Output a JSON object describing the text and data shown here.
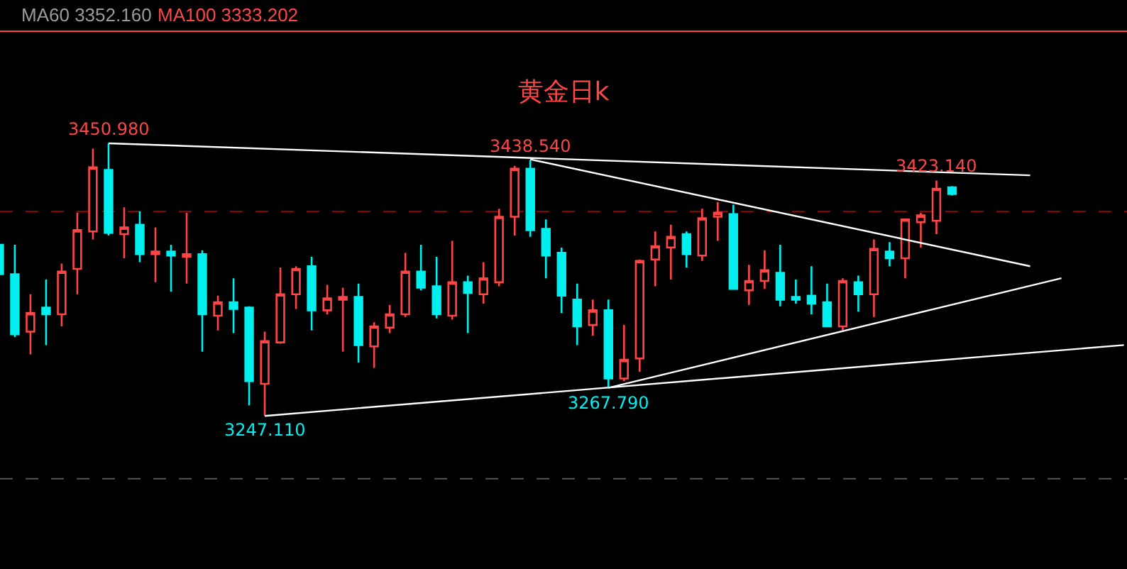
{
  "chart_data": {
    "type": "candlestick",
    "title": "黄金日k",
    "categories": [
      null,
      null,
      null,
      null,
      null,
      null,
      null,
      null,
      null,
      null,
      null,
      null,
      null,
      null,
      null,
      null,
      null,
      null,
      null,
      null,
      null,
      null,
      null,
      null,
      null,
      null,
      null,
      null,
      null,
      null,
      null,
      null,
      null,
      null,
      null,
      null,
      null,
      null,
      null,
      null,
      null,
      null,
      null,
      null,
      null,
      null,
      null,
      null,
      null,
      null,
      null,
      null,
      null,
      null,
      null,
      null,
      null,
      null,
      null,
      null,
      null,
      null,
      null,
      null,
      null,
      null,
      null,
      null,
      null,
      null,
      null,
      null,
      null
    ],
    "series": [
      {
        "type": "line",
        "color": "#ffffff",
        "values": [
          null,
          null,
          null,
          null,
          null,
          null,
          null,
          3451,
          null,
          null,
          null,
          null,
          null,
          null,
          null,
          null,
          null,
          null,
          null,
          null,
          null,
          null,
          null,
          null,
          null,
          null,
          null,
          null,
          null,
          null,
          null,
          null,
          null,
          null,
          null,
          null,
          null,
          null,
          null,
          null,
          null,
          null,
          null,
          null,
          null,
          null,
          null,
          null,
          null,
          null,
          null,
          null,
          null,
          null,
          null,
          null,
          null,
          null,
          null,
          null,
          null,
          null,
          null,
          null,
          null,
          null,
          3427,
          null,
          null,
          null,
          null,
          null,
          null
        ]
      },
      {
        "type": "line",
        "color": "#ffffff",
        "values": [
          null,
          null,
          null,
          null,
          null,
          null,
          null,
          null,
          null,
          null,
          null,
          null,
          null,
          null,
          null,
          null,
          null,
          null,
          null,
          null,
          null,
          null,
          null,
          null,
          null,
          null,
          null,
          null,
          null,
          null,
          null,
          null,
          null,
          null,
          3439,
          null,
          null,
          null,
          null,
          null,
          null,
          null,
          null,
          null,
          null,
          null,
          null,
          null,
          null,
          null,
          null,
          null,
          null,
          null,
          null,
          null,
          null,
          null,
          null,
          null,
          null,
          null,
          null,
          null,
          null,
          null,
          3359,
          null,
          null,
          null,
          null,
          null,
          null
        ]
      },
      {
        "type": "line",
        "color": "#ffffff",
        "values": [
          null,
          null,
          null,
          null,
          null,
          null,
          null,
          null,
          null,
          null,
          null,
          null,
          null,
          null,
          null,
          null,
          null,
          null,
          null,
          null,
          null,
          null,
          null,
          null,
          null,
          null,
          null,
          null,
          null,
          null,
          null,
          null,
          null,
          null,
          null,
          null,
          null,
          null,
          null,
          3268,
          null,
          null,
          null,
          null,
          null,
          null,
          null,
          null,
          null,
          null,
          null,
          null,
          null,
          null,
          null,
          null,
          null,
          null,
          null,
          null,
          null,
          null,
          null,
          null,
          null,
          null,
          null,
          null,
          3350,
          null,
          null,
          null,
          null
        ]
      },
      {
        "type": "line",
        "color": "#ffffff",
        "values": [
          null,
          null,
          null,
          null,
          null,
          null,
          null,
          null,
          null,
          null,
          null,
          null,
          null,
          null,
          null,
          null,
          null,
          3247,
          null,
          null,
          null,
          null,
          null,
          null,
          null,
          null,
          null,
          null,
          null,
          null,
          null,
          null,
          null,
          null,
          null,
          null,
          null,
          null,
          null,
          null,
          null,
          null,
          null,
          null,
          null,
          null,
          null,
          null,
          null,
          null,
          null,
          null,
          null,
          null,
          null,
          null,
          null,
          null,
          null,
          null,
          null,
          null,
          null,
          null,
          null,
          null,
          null,
          null,
          null,
          null,
          null,
          null,
          3300
        ]
      },
      {
        "ohlc": [
          [
            3375,
            3375,
            3353,
            3353
          ],
          [
            3353,
            3375,
            3306,
            3308
          ],
          [
            3310,
            3338,
            3293,
            3324
          ],
          [
            3328,
            3349,
            3300,
            3323
          ],
          [
            3323,
            3361,
            3314,
            3355
          ],
          [
            3357,
            3399,
            3338,
            3386
          ],
          [
            3385,
            3447,
            3379,
            3433
          ],
          [
            3431,
            3450.98,
            3382,
            3384
          ],
          [
            3383,
            3403,
            3365,
            3388
          ],
          [
            3390,
            3400,
            3362,
            3368
          ],
          [
            3368,
            3388,
            3347,
            3370
          ],
          [
            3370,
            3375,
            3340,
            3367
          ],
          [
            3366,
            3399,
            3346,
            3368
          ],
          [
            3368,
            3371,
            3295,
            3323
          ],
          [
            3322,
            3337,
            3311,
            3332
          ],
          [
            3332,
            3350,
            3309,
            3327
          ],
          [
            3328,
            3329,
            3255,
            3273
          ],
          [
            3271,
            3310,
            3247.11,
            3303
          ],
          [
            3302,
            3358,
            3301,
            3338
          ],
          [
            3338,
            3359,
            3327,
            3357
          ],
          [
            3359,
            3366,
            3311,
            3326
          ],
          [
            3326,
            3345,
            3323,
            3335
          ],
          [
            3334,
            3343,
            3295,
            3336
          ],
          [
            3336,
            3346,
            3287,
            3300
          ],
          [
            3299,
            3317,
            3283,
            3314
          ],
          [
            3313,
            3330,
            3309,
            3323
          ],
          [
            3323,
            3369,
            3321,
            3355
          ],
          [
            3355,
            3375,
            3341,
            3343
          ],
          [
            3344,
            3366,
            3320,
            3323
          ],
          [
            3322,
            3378,
            3319,
            3347
          ],
          [
            3347,
            3352,
            3309,
            3339
          ],
          [
            3338,
            3362,
            3331,
            3350
          ],
          [
            3347,
            3402,
            3344,
            3396
          ],
          [
            3396,
            3434,
            3382,
            3432
          ],
          [
            3432,
            3438.54,
            3381,
            3386
          ],
          [
            3387,
            3394,
            3350,
            3367
          ],
          [
            3369,
            3373,
            3324,
            3337
          ],
          [
            3334,
            3346,
            3300,
            3314
          ],
          [
            3315,
            3334,
            3307,
            3326
          ],
          [
            3326,
            3334,
            3267.79,
            3275
          ],
          [
            3275,
            3315,
            3273,
            3289
          ],
          [
            3290,
            3364,
            3280,
            3363
          ],
          [
            3364,
            3385,
            3344,
            3374
          ],
          [
            3373,
            3390,
            3349,
            3381
          ],
          [
            3383,
            3385,
            3358,
            3368
          ],
          [
            3367,
            3402,
            3363,
            3395
          ],
          [
            3396,
            3407,
            3378,
            3399
          ],
          [
            3398,
            3405,
            3342,
            3342
          ],
          [
            3341,
            3360,
            3330,
            3348
          ],
          [
            3348,
            3371,
            3342,
            3356
          ],
          [
            3354,
            3375,
            3329,
            3334
          ],
          [
            3336,
            3349,
            3331,
            3334
          ],
          [
            3337,
            3359,
            3323,
            3331
          ],
          [
            3332,
            3346,
            3314,
            3314
          ],
          [
            3314,
            3350,
            3311,
            3348
          ],
          [
            3347,
            3352,
            3325,
            3338
          ],
          [
            3338,
            3379,
            3321,
            3372
          ],
          [
            3370,
            3377,
            3359,
            3365
          ],
          [
            3365,
            3394,
            3350,
            3394
          ],
          [
            3392,
            3399,
            3373,
            3397
          ],
          [
            3393,
            3423.14,
            3383,
            3417
          ],
          [
            3418,
            3419,
            3412,
            3413
          ],
          null,
          null,
          null,
          null,
          null,
          null,
          null,
          null,
          null,
          null,
          null
        ],
        "colors": [
          "#00f0f0",
          "#00f0f0",
          "#ff4646",
          "#00f0f0",
          "#ff4646",
          "#ff4646",
          "#ff4646",
          "#00f0f0",
          "#ff4646",
          "#00f0f0",
          "#ff4646",
          "#00f0f0",
          "#ff4646",
          "#00f0f0",
          "#ff4646",
          "#00f0f0",
          "#00f0f0",
          "#ff4646",
          "#ff4646",
          "#ff4646",
          "#00f0f0",
          "#ff4646",
          "#ff4646",
          "#00f0f0",
          "#ff4646",
          "#ff4646",
          "#ff4646",
          "#00f0f0",
          "#00f0f0",
          "#ff4646",
          "#00f0f0",
          "#ff4646",
          "#ff4646",
          "#ff4646",
          "#00f0f0",
          "#00f0f0",
          "#00f0f0",
          "#00f0f0",
          "#ff4646",
          "#00f0f0",
          "#ff4646",
          "#ff4646",
          "#ff4646",
          "#ff4646",
          "#00f0f0",
          "#ff4646",
          "#ff4646",
          "#00f0f0",
          "#ff4646",
          "#ff4646",
          "#00f0f0",
          "#00f0f0",
          "#00f0f0",
          "#00f0f0",
          "#ff4646",
          "#00f0f0",
          "#ff4646",
          "#00f0f0",
          "#ff4646",
          "#ff4646",
          "#ff4646",
          "#00f0f0",
          null,
          null,
          null,
          null,
          null,
          null,
          null,
          null,
          null,
          null,
          null
        ]
      }
    ],
    "ref_lines": [
      {
        "axis": "y",
        "value": 3400,
        "color": "#8b0000",
        "line_style": "dashed"
      },
      {
        "axis": "y",
        "value": 3200,
        "color": "#555555",
        "line_style": "dashed"
      }
    ],
    "annotations": [
      {
        "text": "3450.980",
        "y": 3450.98
      },
      {
        "text": "3438.540",
        "y": 3438.54
      },
      {
        "text": "3423.140",
        "y": 3423.14
      },
      {
        "text": "3247.110",
        "y": 3247.11
      },
      {
        "text": "3267.790",
        "y": 3267.79
      },
      "MA60 3352.160",
      "MA100 3333.202"
    ],
    "tick_labels": false,
    "grid": false
  }
}
